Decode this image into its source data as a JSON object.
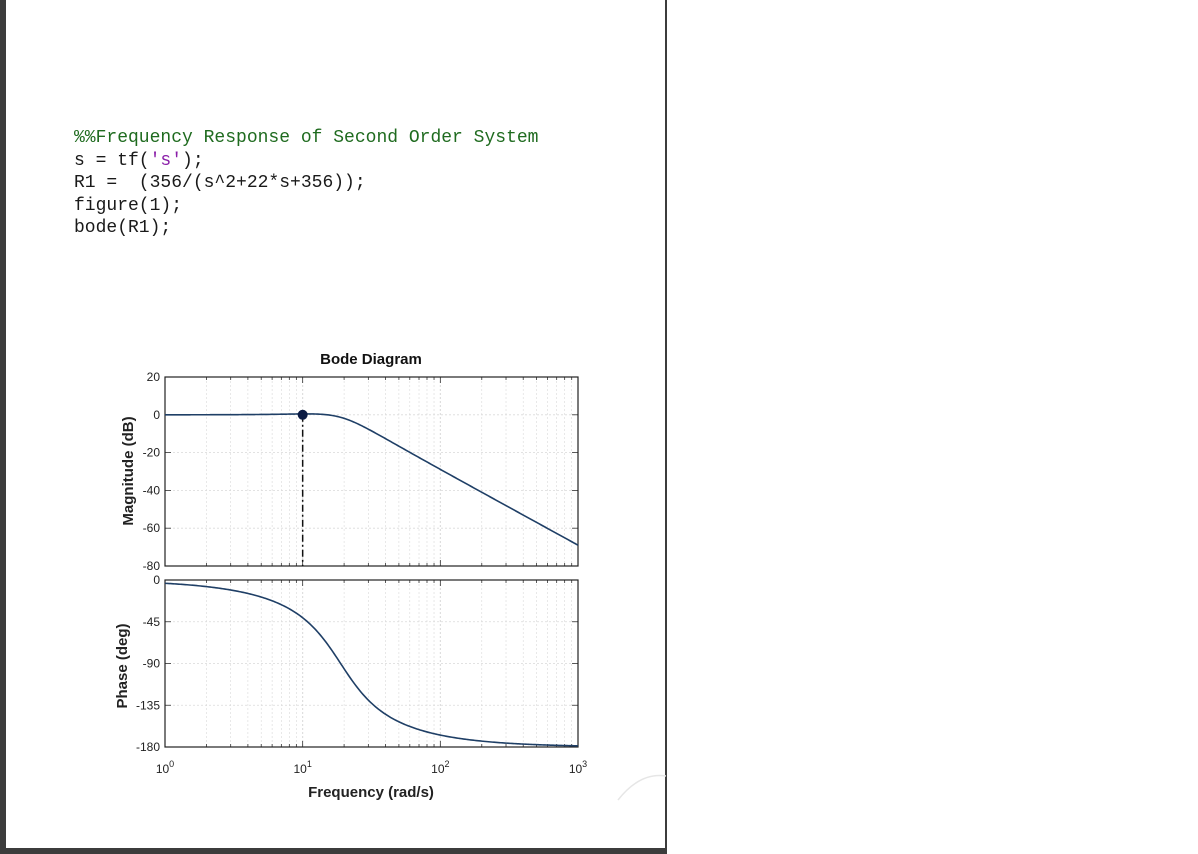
{
  "code": {
    "line1": "%%Frequency Response of Second Order System",
    "line2_a": "s = tf(",
    "line2_str": "'s'",
    "line2_b": ");",
    "line3": "R1 =  (356/(s^2+22*s+356));",
    "line4": "figure(1);",
    "line5": "bode(R1);"
  },
  "colors": {
    "curve": "#1f3f66",
    "grid": "#d9d9d9",
    "marker": "#0a1a44"
  },
  "chart_data": {
    "type": "line",
    "title": "Bode Diagram",
    "xlabel": "Frequency (rad/s)",
    "xscale": "log",
    "xlim": [
      1,
      1000
    ],
    "x_ticks": [
      {
        "base": "10",
        "exp": "0"
      },
      {
        "base": "10",
        "exp": "1"
      },
      {
        "base": "10",
        "exp": "2"
      },
      {
        "base": "10",
        "exp": "3"
      }
    ],
    "grid": true,
    "magnitude": {
      "ylabel": "Magnitude (dB)",
      "ylim": [
        -80,
        20
      ],
      "yticks": [
        20,
        0,
        -20,
        -40,
        -60,
        -80
      ],
      "transfer_function": {
        "numerator": 356,
        "denominator": [
          1,
          22,
          356
        ]
      },
      "points": [
        [
          1,
          0.0
        ],
        [
          2,
          0.03
        ],
        [
          5,
          0.2
        ],
        [
          10,
          0.43
        ],
        [
          18.87,
          -1.99
        ],
        [
          30,
          -8.4
        ],
        [
          50,
          -16.4
        ],
        [
          100,
          -29.1
        ],
        [
          200,
          -41.1
        ],
        [
          500,
          -57.0
        ],
        [
          1000,
          -69.0
        ]
      ],
      "marker": {
        "x": 10,
        "y": 0
      }
    },
    "phase": {
      "ylabel": "Phase (deg)",
      "ylim": [
        -180,
        0
      ],
      "yticks": [
        0,
        -45,
        -90,
        -135,
        -180
      ],
      "points": [
        [
          1,
          -3.6
        ],
        [
          2,
          -7.1
        ],
        [
          5,
          -18.8
        ],
        [
          10,
          -45.7
        ],
        [
          18.87,
          -90
        ],
        [
          30,
          -122.0
        ],
        [
          50,
          -143.6
        ],
        [
          100,
          -162.7
        ],
        [
          200,
          -171.1
        ],
        [
          500,
          -176.5
        ],
        [
          1000,
          -178.7
        ]
      ]
    }
  }
}
